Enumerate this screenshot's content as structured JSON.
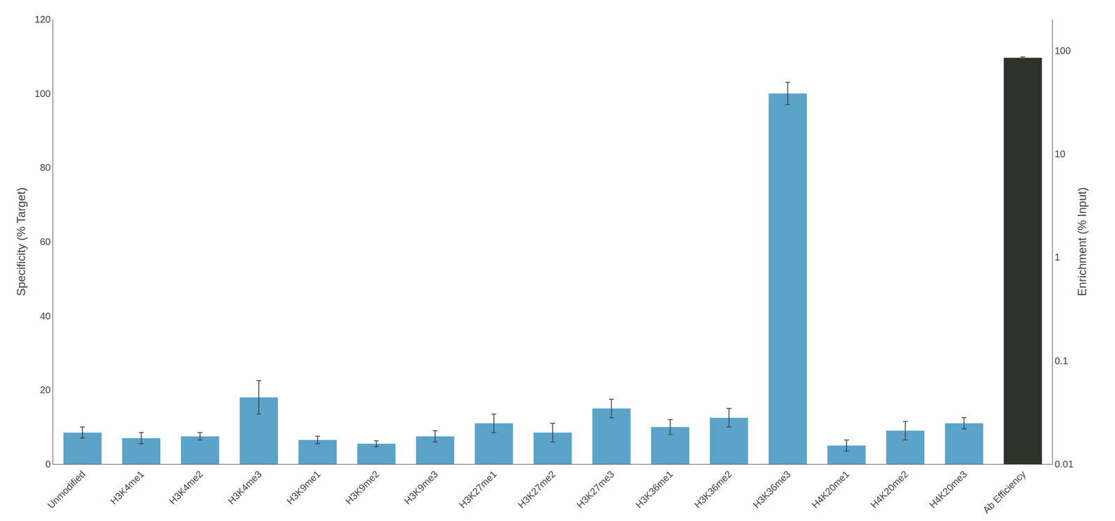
{
  "chart_data": {
    "type": "bar",
    "categories": [
      "Unmodified",
      "H3K4me1",
      "H3K4me2",
      "H3K4me3",
      "H3K9me1",
      "H3K9me2",
      "H3K9me3",
      "H3K27me1",
      "H3K27me2",
      "H3K27me3",
      "H3K36me1",
      "H3K36me2",
      "H3K36me3",
      "H4K20me1",
      "H4K20me2",
      "H4K20me3",
      "Ab Efficiency"
    ],
    "series": [
      {
        "color": "#5BA3C9",
        "axis": "y",
        "values": [
          8.5,
          7.0,
          7.5,
          18.0,
          6.5,
          5.5,
          7.5,
          11.0,
          8.5,
          15.0,
          10.0,
          12.5,
          100.0,
          5.0,
          9.0,
          11.0,
          null
        ],
        "errors": [
          1.5,
          1.5,
          1.0,
          4.5,
          1.0,
          0.8,
          1.5,
          2.5,
          2.5,
          2.5,
          2.0,
          2.5,
          3.0,
          1.5,
          2.5,
          1.5,
          null
        ]
      },
      {
        "color": "#2D3328",
        "axis": "y2",
        "values": [
          null,
          null,
          null,
          null,
          null,
          null,
          null,
          null,
          null,
          null,
          null,
          null,
          null,
          null,
          null,
          null,
          85.0
        ],
        "errors": [
          null,
          null,
          null,
          null,
          null,
          null,
          null,
          null,
          null,
          null,
          null,
          null,
          null,
          null,
          null,
          null,
          1.5
        ]
      }
    ],
    "ylabel": "Specificity (% Target)",
    "y2label": "Enrichment (% Input)",
    "ylim": [
      0,
      120
    ],
    "yticks": [
      0,
      20,
      40,
      60,
      80,
      100,
      120
    ],
    "y2lim": [
      0.01,
      200
    ],
    "y2ticks": [
      0.01,
      0.1,
      1,
      10,
      100
    ],
    "log": "y2",
    "grid": false
  }
}
